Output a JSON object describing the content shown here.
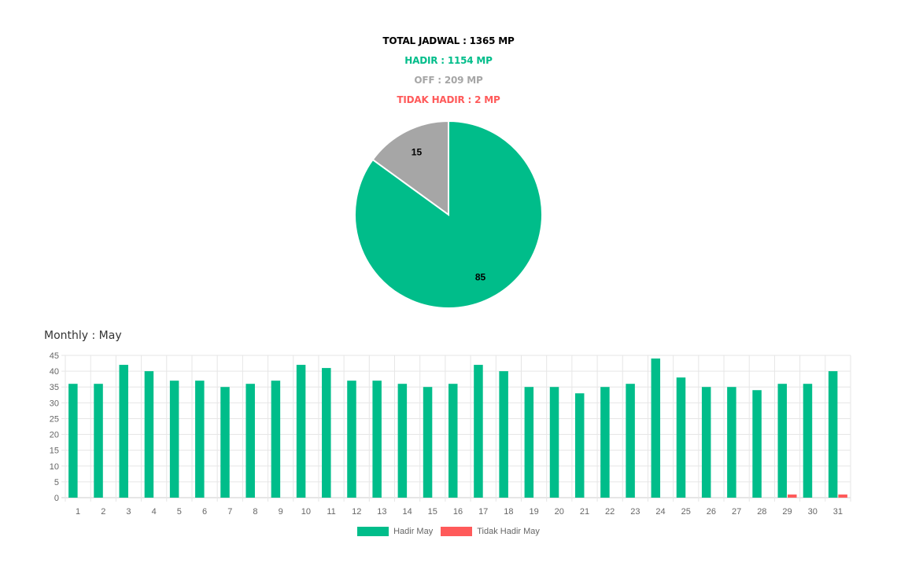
{
  "summary": {
    "total": "TOTAL JADWAL : 1365 MP",
    "hadir": "HADIR : 1154 MP",
    "off": "OFF : 209 MP",
    "tidak_hadir": "TIDAK HADIR : 2 MP"
  },
  "colors": {
    "hadir": "#00bd8a",
    "off": "#a6a6a6",
    "tidak_hadir": "#ff5a5a",
    "text": "#000000",
    "grid": "#e6e6e6",
    "axis": "#666666"
  },
  "monthly_title": "Monthly : May",
  "chart_data": [
    {
      "type": "pie",
      "slices": [
        {
          "label": "85",
          "value": 85,
          "color": "#00bd8a"
        },
        {
          "label": "15",
          "value": 15,
          "color": "#a6a6a6"
        }
      ]
    },
    {
      "type": "bar",
      "title": "Monthly : May",
      "categories": [
        "1",
        "2",
        "3",
        "4",
        "5",
        "6",
        "7",
        "8",
        "9",
        "10",
        "11",
        "12",
        "13",
        "14",
        "15",
        "16",
        "17",
        "18",
        "19",
        "20",
        "21",
        "22",
        "23",
        "24",
        "25",
        "26",
        "27",
        "28",
        "29",
        "30",
        "31"
      ],
      "series": [
        {
          "name": "Hadir May",
          "color": "#00bd8a",
          "values": [
            36,
            36,
            42,
            40,
            37,
            37,
            35,
            36,
            37,
            42,
            41,
            37,
            37,
            36,
            35,
            36,
            42,
            40,
            35,
            35,
            33,
            35,
            36,
            44,
            38,
            35,
            35,
            34,
            36,
            36,
            40
          ]
        },
        {
          "name": "Tidak Hadir May",
          "color": "#ff5a5a",
          "values": [
            0,
            0,
            0,
            0,
            0,
            0,
            0,
            0,
            0,
            0,
            0,
            0,
            0,
            0,
            0,
            0,
            0,
            0,
            0,
            0,
            0,
            0,
            0,
            0,
            0,
            0,
            0,
            0,
            1,
            0,
            1
          ]
        }
      ],
      "yticks": [
        0,
        5,
        10,
        15,
        20,
        25,
        30,
        35,
        40,
        45
      ],
      "ylim": [
        0,
        45
      ],
      "grid": true,
      "legend": "bottom"
    }
  ]
}
